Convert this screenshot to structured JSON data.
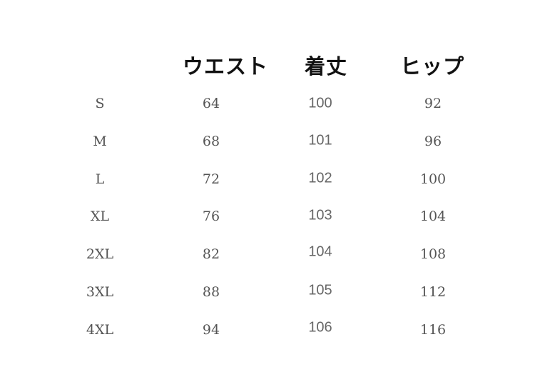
{
  "table": {
    "headers": [
      "ウエスト",
      "着丈",
      "ヒップ"
    ],
    "rows": [
      {
        "size": "S",
        "waist": "64",
        "length": "100",
        "hip": "92"
      },
      {
        "size": "M",
        "waist": "68",
        "length": "101",
        "hip": "96"
      },
      {
        "size": "L",
        "waist": "72",
        "length": "102",
        "hip": "100"
      },
      {
        "size": "XL",
        "waist": "76",
        "length": "103",
        "hip": "104"
      },
      {
        "size": "2XL",
        "waist": "82",
        "length": "104",
        "hip": "108"
      },
      {
        "size": "3XL",
        "waist": "88",
        "length": "105",
        "hip": "112"
      },
      {
        "size": "4XL",
        "waist": "94",
        "length": "106",
        "hip": "116"
      }
    ]
  }
}
